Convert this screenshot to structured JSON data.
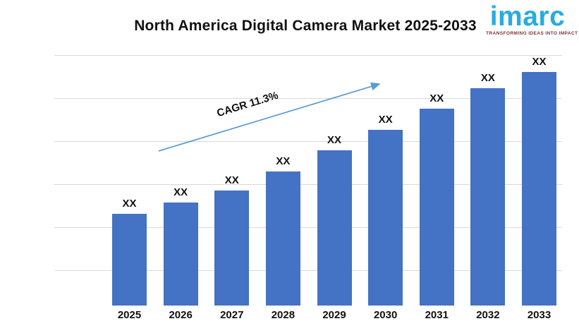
{
  "header": {
    "title": "North America Digital Camera Market 2025-2033"
  },
  "logo": {
    "name": "imarc",
    "tagline": "TRANSFORMING IDEAS INTO IMPACT",
    "brand_color": "#29ABE2",
    "tagline_color": "#7A353C"
  },
  "chart_data": {
    "type": "bar",
    "title": "North America Digital Camera Market 2025-2033",
    "categories": [
      "2025",
      "2026",
      "2027",
      "2028",
      "2029",
      "2030",
      "2031",
      "2032",
      "2033"
    ],
    "values_masked": true,
    "value_labels": [
      "XX",
      "XX",
      "XX",
      "XX",
      "XX",
      "XX",
      "XX",
      "XX",
      "XX"
    ],
    "relative_heights": [
      0.393,
      0.441,
      0.492,
      0.574,
      0.665,
      0.752,
      0.843,
      0.93,
      1.0
    ],
    "annotation": {
      "text": "CAGR 11.3%",
      "arrow": true
    },
    "bar_color": "#4472C4",
    "arrow_color": "#5B9BD5",
    "gridline_color": "#d9d9d9",
    "xlabel": "",
    "ylabel": "",
    "y_axis_visible": false,
    "gridlines": "horizontal",
    "legend": "none"
  }
}
